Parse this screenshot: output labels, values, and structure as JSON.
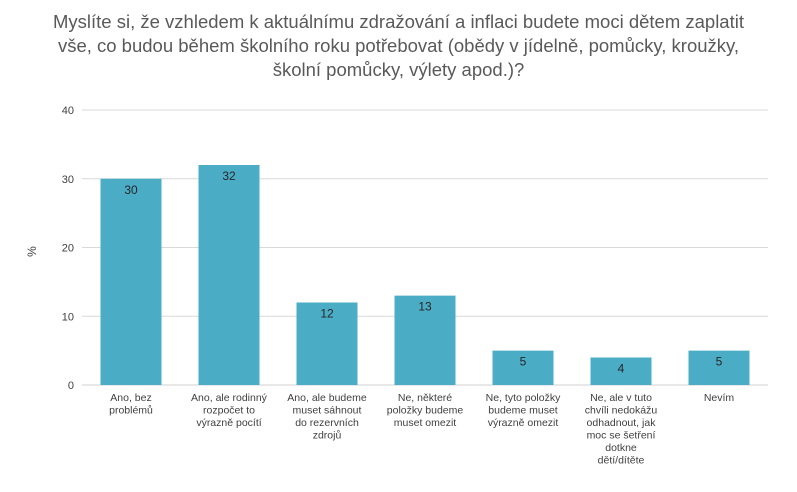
{
  "title_lines": [
    "Myslíte si, že vzhledem k aktuálnímu zdražování a inflaci budete moci dětem zaplatit",
    "vše, co budou během školního roku potřebovat (obědy v jídelně, pomůcky, kroužky,",
    "školní pomůcky, výlety apod.)?"
  ],
  "chart_data": {
    "type": "bar",
    "title": "Myslíte si, že vzhledem k aktuálnímu zdražování a inflaci budete moci dětem zaplatit vše, co budou během školního roku potřebovat (obědy v jídelně, pomůcky, kroužky, školní pomůcky, výlety apod.)?",
    "xlabel": "",
    "ylabel": "%",
    "ylim": [
      0,
      40
    ],
    "yticks": [
      0,
      10,
      20,
      30,
      40
    ],
    "grid": true,
    "legend": "none",
    "bar_color": "#4bacc6",
    "categories": [
      [
        "Ano, bez",
        "problémů"
      ],
      [
        "Ano, ale rodinný",
        "rozpočet to",
        "výrazně pocítí"
      ],
      [
        "Ano, ale budeme",
        "muset sáhnout",
        "do rezervních",
        "zdrojů"
      ],
      [
        "Ne, některé",
        "položky budeme",
        "muset omezit"
      ],
      [
        "Ne, tyto položky",
        "budeme muset",
        "výrazně omezit"
      ],
      [
        "Ne, ale v tuto",
        "chvíli nedokážu",
        "odhadnout, jak",
        "moc se šetření",
        "dotkne",
        "dětí/dítěte"
      ],
      [
        "Nevím"
      ]
    ],
    "values": [
      30,
      32,
      12,
      13,
      5,
      4,
      5
    ],
    "value_labels": [
      "30",
      "32",
      "12",
      "13",
      "5",
      "4",
      "5"
    ]
  }
}
